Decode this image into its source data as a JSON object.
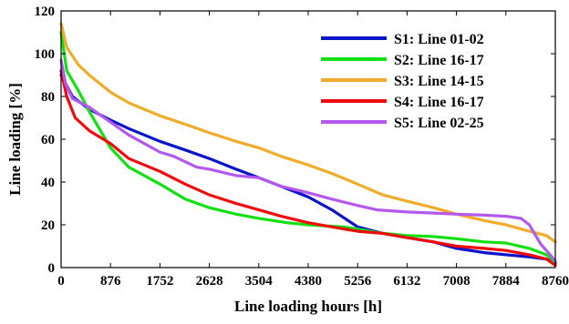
{
  "chart_data": {
    "type": "line",
    "xlabel": "Line loading hours [h]",
    "ylabel": "Line loading [%]",
    "xlim": [
      0,
      8760
    ],
    "ylim": [
      0,
      120
    ],
    "x_ticks": [
      "0",
      "876",
      "1752",
      "2628",
      "3504",
      "4380",
      "5256",
      "6132",
      "7008",
      "7884",
      "8760"
    ],
    "y_ticks": [
      "0",
      "20",
      "40",
      "60",
      "80",
      "100",
      "120"
    ],
    "legend_position": "top-right",
    "grid": false,
    "series": [
      {
        "name": "S1: Line 01-02",
        "color": "#0a14c8",
        "points": [
          [
            0,
            90
          ],
          [
            200,
            80
          ],
          [
            500,
            74
          ],
          [
            876,
            69
          ],
          [
            1200,
            65
          ],
          [
            1752,
            59
          ],
          [
            2200,
            55
          ],
          [
            2628,
            51
          ],
          [
            3100,
            46
          ],
          [
            3504,
            42
          ],
          [
            3900,
            38
          ],
          [
            4380,
            33
          ],
          [
            4800,
            27
          ],
          [
            5256,
            19
          ],
          [
            5700,
            16
          ],
          [
            6132,
            14
          ],
          [
            6600,
            12
          ],
          [
            7008,
            9
          ],
          [
            7500,
            7
          ],
          [
            7884,
            6
          ],
          [
            8300,
            5
          ],
          [
            8600,
            4
          ],
          [
            8700,
            3
          ],
          [
            8760,
            2
          ]
        ]
      },
      {
        "name": "S2: Line 16-17",
        "color": "#12e012",
        "points": [
          [
            0,
            110
          ],
          [
            100,
            92
          ],
          [
            300,
            83
          ],
          [
            500,
            73
          ],
          [
            876,
            56
          ],
          [
            1200,
            47
          ],
          [
            1752,
            39
          ],
          [
            2200,
            32
          ],
          [
            2628,
            28
          ],
          [
            3100,
            25
          ],
          [
            3504,
            23
          ],
          [
            4000,
            21
          ],
          [
            4380,
            20
          ],
          [
            5000,
            19
          ],
          [
            5256,
            18
          ],
          [
            5700,
            16
          ],
          [
            6132,
            15
          ],
          [
            6600,
            14.5
          ],
          [
            7008,
            13.5
          ],
          [
            7500,
            12
          ],
          [
            7884,
            11.5
          ],
          [
            8300,
            9
          ],
          [
            8600,
            6
          ],
          [
            8700,
            4
          ],
          [
            8760,
            1
          ]
        ]
      },
      {
        "name": "S3: Line 14-15",
        "color": "#f0ac2a",
        "points": [
          [
            0,
            114
          ],
          [
            100,
            103
          ],
          [
            300,
            95
          ],
          [
            500,
            90
          ],
          [
            876,
            82
          ],
          [
            1200,
            77
          ],
          [
            1752,
            71
          ],
          [
            2200,
            67
          ],
          [
            2628,
            63
          ],
          [
            3100,
            59
          ],
          [
            3504,
            56
          ],
          [
            3900,
            52
          ],
          [
            4380,
            48
          ],
          [
            4800,
            44
          ],
          [
            5256,
            39
          ],
          [
            5700,
            34
          ],
          [
            6132,
            31
          ],
          [
            6600,
            28
          ],
          [
            7008,
            25
          ],
          [
            7500,
            22
          ],
          [
            7884,
            20
          ],
          [
            8300,
            17
          ],
          [
            8600,
            15
          ],
          [
            8760,
            12
          ]
        ]
      },
      {
        "name": "S4: Line 16-17",
        "color": "#ee0c0c",
        "points": [
          [
            0,
            92
          ],
          [
            100,
            80
          ],
          [
            250,
            70
          ],
          [
            500,
            64
          ],
          [
            876,
            58
          ],
          [
            1200,
            51
          ],
          [
            1752,
            45
          ],
          [
            2200,
            39
          ],
          [
            2628,
            34
          ],
          [
            3100,
            30
          ],
          [
            3504,
            27
          ],
          [
            3900,
            24
          ],
          [
            4380,
            21
          ],
          [
            4800,
            19
          ],
          [
            5256,
            17
          ],
          [
            5700,
            16
          ],
          [
            6132,
            14
          ],
          [
            6600,
            12
          ],
          [
            7008,
            10
          ],
          [
            7500,
            9
          ],
          [
            7884,
            8
          ],
          [
            8300,
            6
          ],
          [
            8600,
            4
          ],
          [
            8760,
            1
          ]
        ]
      },
      {
        "name": "S5: Line 02-25",
        "color": "#b459ee",
        "points": [
          [
            0,
            97
          ],
          [
            80,
            86
          ],
          [
            200,
            79
          ],
          [
            500,
            75
          ],
          [
            876,
            68
          ],
          [
            1200,
            62
          ],
          [
            1752,
            54
          ],
          [
            2000,
            52
          ],
          [
            2400,
            47
          ],
          [
            2628,
            46
          ],
          [
            3100,
            43
          ],
          [
            3504,
            42
          ],
          [
            3900,
            38
          ],
          [
            4380,
            35
          ],
          [
            4800,
            32
          ],
          [
            5256,
            29
          ],
          [
            5600,
            27
          ],
          [
            6132,
            26
          ],
          [
            6600,
            25.5
          ],
          [
            7008,
            25
          ],
          [
            7500,
            24.5
          ],
          [
            7884,
            24
          ],
          [
            8150,
            23
          ],
          [
            8300,
            20
          ],
          [
            8500,
            11
          ],
          [
            8600,
            8
          ],
          [
            8700,
            5
          ],
          [
            8760,
            3
          ]
        ]
      }
    ]
  }
}
